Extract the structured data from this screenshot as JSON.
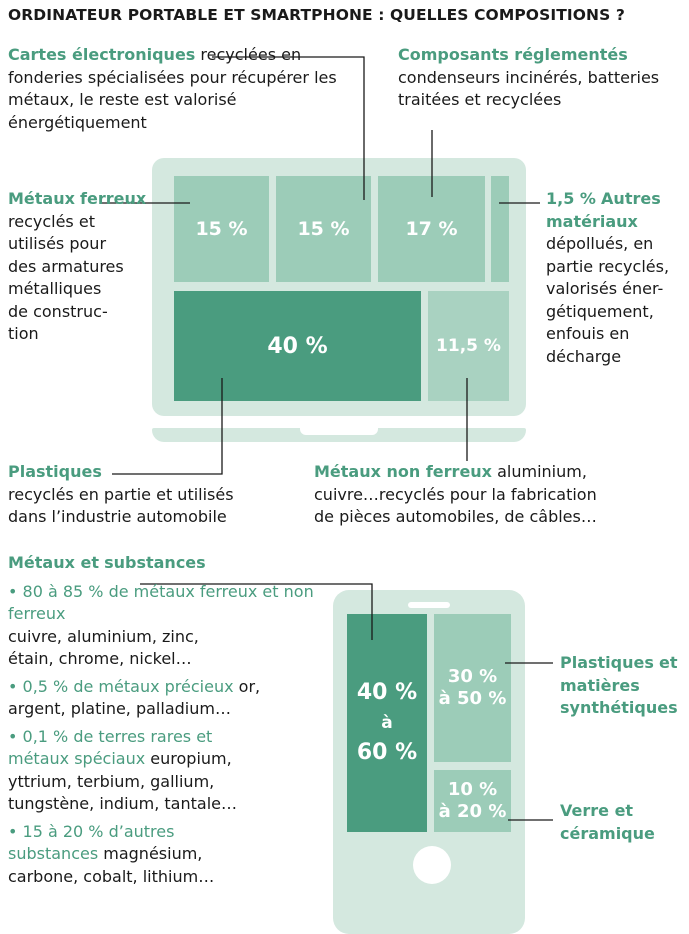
{
  "title": "ORDINATEUR PORTABLE ET SMARTPHONE : QUELLES COMPOSITIONS ?",
  "laptop": {
    "segments": [
      {
        "value": "15 %"
      },
      {
        "value": "15 %"
      },
      {
        "value": "17 %"
      },
      {
        "value": "40 %"
      },
      {
        "value": "11,5 %"
      }
    ],
    "labels": {
      "cartes": {
        "name": "Cartes électroniques",
        "text": "recyclées en fonderies spécialisées pour récupérer les métaux, le reste est valorisé énergétiquement"
      },
      "composants": {
        "name": "Composants réglementés",
        "text": "condenseurs incinérés, batteries traitées et recyclées"
      },
      "ferreux": {
        "name_l1": "Métaux",
        "name_l2": "ferreux",
        "text": [
          "recyclés et",
          "utilisés pour",
          "des armatures",
          "métalliques",
          "de construc-",
          "tion"
        ]
      },
      "autres": {
        "pct": "1,5 %",
        "name_l1": "Autres",
        "name_l2": "matériaux",
        "text": [
          "dépollués, en",
          "partie recyclés,",
          "valorisés éner-",
          "gétiquement,",
          "enfouis en",
          "décharge"
        ]
      },
      "plastiques": {
        "name": "Plastiques",
        "text": [
          "recyclés en partie et utilisés",
          "dans l’industrie automobile"
        ]
      },
      "nonferreux": {
        "name": "Métaux non ferreux",
        "text_l1": " aluminium,",
        "text": [
          "cuivre…recyclés pour la fabrication",
          "de pièces automobiles, de câbles…"
        ]
      }
    }
  },
  "phone": {
    "left_segment": {
      "l1": "40 %",
      "l2": "à",
      "l3": "60 %"
    },
    "top_right": {
      "l1": "30 %",
      "l2": "à 50 %"
    },
    "bottom_right": {
      "l1": "10 %",
      "l2": "à 20 %"
    },
    "label_plastiques": [
      "Plastiques",
      "et matières",
      "synthétiques"
    ],
    "label_verre": [
      "Verre et",
      "céramique"
    ]
  },
  "metaux": {
    "heading": [
      "Métaux et",
      "substances"
    ],
    "items": [
      {
        "green": [
          "• 80 à 85 % de métaux",
          "ferreux et non ferreux"
        ],
        "black": [
          "cuivre, aluminium, zinc,",
          "étain, chrome, nickel…"
        ]
      },
      {
        "green_inline": "• 0,5 % de métaux précieux",
        "black_inline": " or,",
        "black": [
          "argent, platine, palladium…"
        ]
      },
      {
        "green": [
          "• 0,1 % de terres rares et"
        ],
        "green_inline": "métaux spéciaux",
        "black_inline": " europium,",
        "black": [
          "yttrium, terbium, gallium,",
          "tungstène, indium, tantale…"
        ]
      },
      {
        "green": [
          "• 15 à 20 % d’autres"
        ],
        "green_inline": "substances",
        "black_inline": " magnésium,",
        "black": [
          "carbone, cobalt, lithium…"
        ]
      }
    ]
  }
}
